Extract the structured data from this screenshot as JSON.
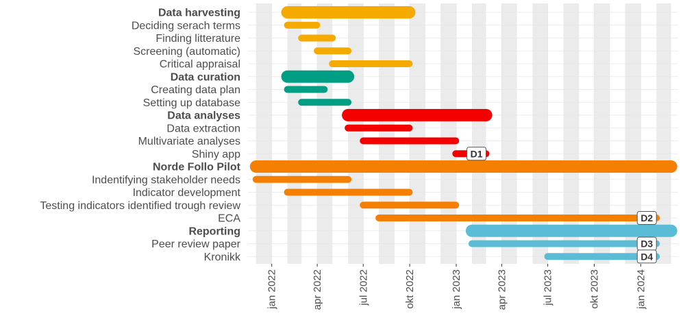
{
  "chart_data": {
    "type": "gantt",
    "title": "",
    "xlabel": "",
    "ylabel": "",
    "x_range": [
      "2021-11-15",
      "2024-03-15"
    ],
    "x_ticks": [
      {
        "date": "2022-01-01",
        "label": "jan 2022"
      },
      {
        "date": "2022-04-01",
        "label": "apr 2022"
      },
      {
        "date": "2022-07-01",
        "label": "jul 2022"
      },
      {
        "date": "2022-10-01",
        "label": "okt 2022"
      },
      {
        "date": "2023-01-01",
        "label": "jan 2023"
      },
      {
        "date": "2023-04-01",
        "label": "apr 2023"
      },
      {
        "date": "2023-07-01",
        "label": "jul 2023"
      },
      {
        "date": "2023-10-01",
        "label": "okt 2023"
      },
      {
        "date": "2024-01-01",
        "label": "jan 2024"
      }
    ],
    "shaded_months": [
      "2021-12-01",
      "2022-02-01",
      "2022-04-01",
      "2022-06-01",
      "2022-08-01",
      "2022-10-01",
      "2022-12-01",
      "2023-02-01",
      "2023-04-01",
      "2023-06-01",
      "2023-08-01",
      "2023-10-01",
      "2023-12-01",
      "2024-02-01"
    ],
    "grid": true,
    "colors": {
      "harvesting": "#F5AA00",
      "curation": "#009E85",
      "analyses": "#F50000",
      "pilot": "#F57F00",
      "reporting": "#5BBCD6",
      "shade": "#ebebeb",
      "grid": "#e6e6e6",
      "label_text": "#4d4d4d"
    },
    "tasks": [
      {
        "name": "Data harvesting",
        "bold": true,
        "start": "2022-02-01",
        "end": "2022-09-30",
        "color": "harvesting"
      },
      {
        "name": "Deciding serach terms",
        "bold": false,
        "start": "2022-02-01",
        "end": "2022-03-31",
        "color": "harvesting"
      },
      {
        "name": "Finding litterature",
        "bold": false,
        "start": "2022-03-01",
        "end": "2022-05-01",
        "color": "harvesting"
      },
      {
        "name": "Screening (automatic)",
        "bold": false,
        "start": "2022-04-01",
        "end": "2022-06-01",
        "color": "harvesting"
      },
      {
        "name": "Critical appraisal",
        "bold": false,
        "start": "2022-05-01",
        "end": "2022-09-30",
        "color": "harvesting"
      },
      {
        "name": "Data curation",
        "bold": true,
        "start": "2022-02-01",
        "end": "2022-06-01",
        "color": "curation"
      },
      {
        "name": "Creating data plan",
        "bold": false,
        "start": "2022-02-01",
        "end": "2022-04-15",
        "color": "curation"
      },
      {
        "name": "Setting up database",
        "bold": false,
        "start": "2022-03-01",
        "end": "2022-06-01",
        "color": "curation"
      },
      {
        "name": "Data analyses",
        "bold": true,
        "start": "2022-06-01",
        "end": "2023-03-01",
        "color": "analyses"
      },
      {
        "name": "Data extraction",
        "bold": false,
        "start": "2022-06-01",
        "end": "2022-09-30",
        "color": "analyses"
      },
      {
        "name": "Multivariate analyses",
        "bold": false,
        "start": "2022-07-01",
        "end": "2022-12-31",
        "color": "analyses"
      },
      {
        "name": "Shiny app",
        "bold": false,
        "start": "2022-12-31",
        "end": "2023-03-01",
        "color": "analyses",
        "milestone": "D1"
      },
      {
        "name": "Norde Follo Pilot",
        "bold": true,
        "start": "2021-12-01",
        "end": "2024-03-01",
        "color": "pilot"
      },
      {
        "name": "Indentifying stakeholder needs",
        "bold": false,
        "start": "2021-12-01",
        "end": "2022-06-01",
        "color": "pilot"
      },
      {
        "name": "Indicator development",
        "bold": false,
        "start": "2022-02-01",
        "end": "2022-09-30",
        "color": "pilot"
      },
      {
        "name": "Testing indicators identified trough review",
        "bold": false,
        "start": "2022-07-01",
        "end": "2022-12-31",
        "color": "pilot"
      },
      {
        "name": "ECA",
        "bold": false,
        "start": "2022-08-01",
        "end": "2024-02-01",
        "color": "pilot",
        "milestone": "D2"
      },
      {
        "name": "Reporting",
        "bold": true,
        "start": "2023-02-01",
        "end": "2024-03-01",
        "color": "reporting"
      },
      {
        "name": "Peer review paper",
        "bold": false,
        "start": "2023-02-01",
        "end": "2024-02-01",
        "color": "reporting",
        "milestone": "D3"
      },
      {
        "name": "Kronikk",
        "bold": false,
        "start": "2023-07-01",
        "end": "2024-02-01",
        "color": "reporting",
        "milestone": "D4"
      }
    ]
  }
}
